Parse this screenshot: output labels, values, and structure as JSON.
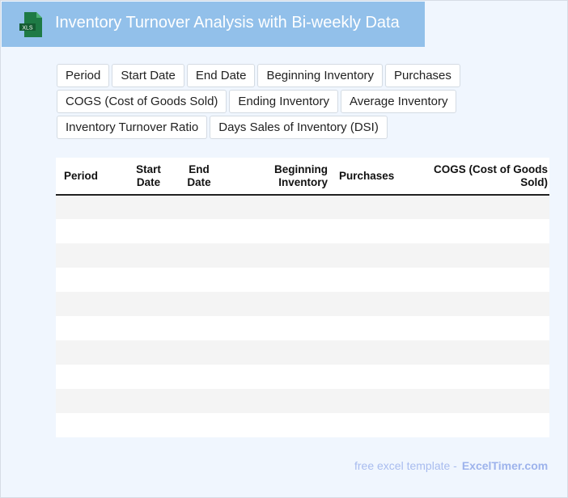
{
  "header": {
    "title": "Inventory Turnover Analysis with Bi-weekly Data",
    "icon": "xls-file-icon",
    "icon_label": "XLS"
  },
  "chips": [
    [
      "Period",
      "Start Date",
      "End Date",
      "Beginning Inventory",
      "Purchases"
    ],
    [
      "COGS (Cost of Goods Sold)",
      "Ending Inventory",
      "Average Inventory"
    ],
    [
      "Inventory Turnover Ratio",
      "Days Sales of Inventory (DSI)"
    ]
  ],
  "table": {
    "columns": [
      "Period",
      "Start Date",
      "End Date",
      "Beginning Inventory",
      "Purchases",
      "COGS (Cost of Goods Sold)"
    ],
    "rows": 10
  },
  "footer": {
    "text": "free excel template -",
    "brand": "ExcelTimer.com"
  }
}
